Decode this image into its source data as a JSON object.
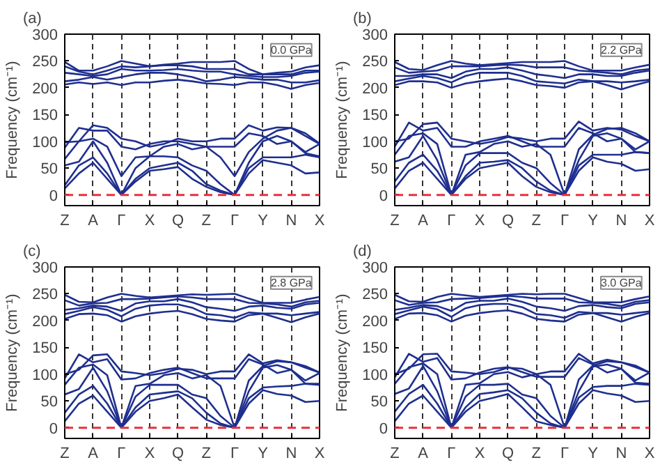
{
  "chart_data": [
    {
      "type": "line",
      "title": "(a)",
      "ylabel": "Frequency (cm⁻¹)",
      "annotations": [
        "0.0 GPa"
      ],
      "ylim": [
        -20,
        300
      ],
      "yticks": [
        0,
        50,
        100,
        150,
        200,
        250,
        300
      ],
      "categories": [
        "Z",
        null,
        "A",
        null,
        "Γ",
        null,
        "X",
        null,
        "Q",
        null,
        "Z",
        null,
        "Γ",
        null,
        "Y",
        null,
        "N",
        null,
        "X"
      ],
      "grid": "x",
      "ref_lines": [
        {
          "axis": "y",
          "value": 0,
          "color": "#e8303a",
          "line_style": "dashed"
        }
      ],
      "series": [
        {
          "color": "#1f2f8f",
          "values": [
            12,
            40,
            60,
            30,
            0,
            25,
            45,
            48,
            52,
            30,
            15,
            5,
            0,
            40,
            65,
            60,
            55,
            40,
            42
          ]
        },
        {
          "color": "#1f2f8f",
          "values": [
            18,
            55,
            70,
            40,
            0,
            30,
            50,
            55,
            60,
            45,
            20,
            8,
            0,
            50,
            70,
            70,
            70,
            75,
            70
          ]
        },
        {
          "color": "#1f2f8f",
          "values": [
            55,
            62,
            100,
            60,
            0,
            50,
            72,
            72,
            70,
            55,
            45,
            20,
            0,
            60,
            100,
            110,
            100,
            80,
            95
          ]
        },
        {
          "color": "#1f2f8f",
          "values": [
            67,
            100,
            105,
            90,
            35,
            70,
            72,
            90,
            95,
            85,
            90,
            70,
            35,
            80,
            105,
            120,
            125,
            110,
            95
          ]
        },
        {
          "color": "#1f2f8f",
          "values": [
            88,
            125,
            120,
            120,
            90,
            85,
            95,
            100,
            100,
            95,
            90,
            90,
            90,
            115,
            110,
            95,
            100,
            78,
            72
          ]
        },
        {
          "color": "#1f2f8f",
          "values": [
            98,
            100,
            130,
            125,
            105,
            100,
            90,
            95,
            105,
            100,
            100,
            105,
            105,
            130,
            120,
            126,
            125,
            115,
            96
          ]
        },
        {
          "color": "#1f2f8f",
          "values": [
            206,
            210,
            207,
            210,
            205,
            210,
            210,
            213,
            215,
            212,
            208,
            207,
            205,
            210,
            210,
            205,
            198,
            205,
            209
          ]
        },
        {
          "color": "#1f2f8f",
          "values": [
            212,
            215,
            220,
            215,
            220,
            225,
            228,
            228,
            225,
            220,
            212,
            215,
            220,
            218,
            215,
            215,
            210,
            210,
            214
          ]
        },
        {
          "color": "#1f2f8f",
          "values": [
            228,
            225,
            222,
            225,
            235,
            232,
            232,
            233,
            235,
            232,
            230,
            230,
            225,
            222,
            220,
            220,
            222,
            228,
            230
          ]
        },
        {
          "color": "#1f2f8f",
          "values": [
            240,
            230,
            225,
            232,
            240,
            238,
            240,
            242,
            242,
            240,
            235,
            235,
            235,
            225,
            225,
            225,
            225,
            232,
            232
          ]
        },
        {
          "color": "#1f2f8f",
          "values": [
            248,
            232,
            232,
            240,
            250,
            245,
            240,
            243,
            245,
            248,
            248,
            248,
            250,
            235,
            225,
            228,
            230,
            238,
            242
          ]
        }
      ]
    },
    {
      "type": "line",
      "title": "(b)",
      "ylabel": "Frequency (cm⁻¹)",
      "annotations": [
        "2.2 GPa"
      ],
      "ylim": [
        -20,
        300
      ],
      "yticks": [
        0,
        50,
        100,
        150,
        200,
        250,
        300
      ],
      "categories": [
        "Z",
        null,
        "A",
        null,
        "Γ",
        null,
        "X",
        null,
        "Q",
        null,
        "Z",
        null,
        "Γ",
        null,
        "Y",
        null,
        "N",
        null,
        "X"
      ],
      "grid": "x",
      "ref_lines": [
        {
          "axis": "y",
          "value": 0,
          "color": "#e8303a",
          "line_style": "dashed"
        }
      ],
      "series": [
        {
          "color": "#1f2f8f",
          "values": [
            12,
            45,
            60,
            30,
            0,
            30,
            50,
            55,
            60,
            35,
            15,
            5,
            0,
            45,
            70,
            62,
            58,
            45,
            48
          ]
        },
        {
          "color": "#1f2f8f",
          "values": [
            25,
            60,
            75,
            45,
            0,
            35,
            60,
            62,
            65,
            50,
            25,
            8,
            0,
            55,
            75,
            75,
            75,
            80,
            78
          ]
        },
        {
          "color": "#1f2f8f",
          "values": [
            62,
            70,
            110,
            65,
            0,
            55,
            78,
            78,
            78,
            60,
            50,
            22,
            0,
            65,
            110,
            115,
            105,
            85,
            100
          ]
        },
        {
          "color": "#1f2f8f",
          "values": [
            75,
            110,
            115,
            95,
            0,
            75,
            80,
            95,
            100,
            90,
            95,
            75,
            0,
            85,
            112,
            123,
            125,
            115,
            100
          ]
        },
        {
          "color": "#1f2f8f",
          "values": [
            90,
            135,
            120,
            125,
            90,
            90,
            100,
            105,
            110,
            100,
            90,
            90,
            90,
            125,
            115,
            100,
            105,
            80,
            78
          ]
        },
        {
          "color": "#1f2f8f",
          "values": [
            100,
            105,
            132,
            135,
            105,
            100,
            95,
            100,
            108,
            105,
            100,
            105,
            105,
            137,
            120,
            125,
            122,
            110,
            100
          ]
        },
        {
          "color": "#1f2f8f",
          "values": [
            205,
            212,
            212,
            210,
            200,
            208,
            212,
            215,
            217,
            212,
            205,
            203,
            200,
            210,
            212,
            205,
            197,
            205,
            212
          ]
        },
        {
          "color": "#1f2f8f",
          "values": [
            212,
            217,
            222,
            218,
            210,
            222,
            228,
            228,
            228,
            222,
            212,
            210,
            208,
            215,
            212,
            212,
            210,
            212,
            215
          ]
        },
        {
          "color": "#1f2f8f",
          "values": [
            222,
            222,
            225,
            225,
            218,
            230,
            235,
            235,
            238,
            232,
            225,
            222,
            218,
            225,
            225,
            222,
            222,
            228,
            232
          ]
        },
        {
          "color": "#1f2f8f",
          "values": [
            238,
            228,
            230,
            232,
            240,
            240,
            240,
            242,
            243,
            242,
            238,
            238,
            238,
            232,
            230,
            228,
            225,
            232,
            235
          ]
        },
        {
          "color": "#1f2f8f",
          "values": [
            248,
            235,
            233,
            242,
            250,
            245,
            242,
            244,
            246,
            248,
            248,
            248,
            250,
            240,
            232,
            232,
            232,
            238,
            243
          ]
        }
      ]
    },
    {
      "type": "line",
      "title": "(c)",
      "ylabel": "Frequency (cm⁻¹)",
      "annotations": [
        "2.8 GPa"
      ],
      "ylim": [
        -20,
        300
      ],
      "yticks": [
        0,
        50,
        100,
        150,
        200,
        250,
        300
      ],
      "categories": [
        "Z",
        null,
        "A",
        null,
        "Γ",
        null,
        "X",
        null,
        "Q",
        null,
        "Z",
        null,
        "Γ",
        null,
        "Y",
        null,
        "N",
        null,
        "X"
      ],
      "grid": "x",
      "ref_lines": [
        {
          "axis": "y",
          "value": 0,
          "color": "#e8303a",
          "line_style": "dashed"
        }
      ],
      "series": [
        {
          "color": "#1f2f8f",
          "values": [
            12,
            45,
            60,
            30,
            0,
            30,
            50,
            55,
            62,
            38,
            15,
            5,
            0,
            45,
            70,
            63,
            60,
            48,
            50
          ]
        },
        {
          "color": "#1f2f8f",
          "values": [
            28,
            62,
            78,
            45,
            0,
            38,
            62,
            65,
            68,
            55,
            28,
            8,
            0,
            55,
            75,
            77,
            78,
            82,
            80
          ]
        },
        {
          "color": "#1f2f8f",
          "values": [
            62,
            72,
            112,
            68,
            0,
            58,
            80,
            80,
            80,
            62,
            55,
            22,
            0,
            68,
            112,
            117,
            108,
            88,
            102
          ]
        },
        {
          "color": "#1f2f8f",
          "values": [
            80,
            112,
            118,
            98,
            0,
            78,
            82,
            98,
            102,
            92,
            98,
            78,
            0,
            88,
            115,
            124,
            122,
            115,
            103
          ]
        },
        {
          "color": "#1f2f8f",
          "values": [
            92,
            137,
            122,
            128,
            90,
            92,
            102,
            108,
            112,
            102,
            92,
            92,
            92,
            128,
            118,
            102,
            108,
            82,
            82
          ]
        },
        {
          "color": "#1f2f8f",
          "values": [
            100,
            108,
            135,
            137,
            105,
            102,
            98,
            102,
            110,
            108,
            100,
            105,
            105,
            137,
            120,
            126,
            122,
            112,
            103
          ]
        },
        {
          "color": "#1f2f8f",
          "values": [
            203,
            212,
            213,
            210,
            198,
            208,
            213,
            216,
            218,
            212,
            203,
            200,
            198,
            210,
            213,
            205,
            197,
            206,
            213
          ]
        },
        {
          "color": "#1f2f8f",
          "values": [
            212,
            218,
            225,
            220,
            208,
            222,
            228,
            230,
            230,
            224,
            212,
            210,
            205,
            215,
            213,
            213,
            210,
            213,
            216
          ]
        },
        {
          "color": "#1f2f8f",
          "values": [
            220,
            223,
            228,
            226,
            218,
            232,
            236,
            236,
            240,
            234,
            225,
            222,
            218,
            226,
            228,
            224,
            222,
            230,
            233
          ]
        },
        {
          "color": "#1f2f8f",
          "values": [
            238,
            228,
            232,
            233,
            240,
            240,
            241,
            243,
            245,
            243,
            240,
            240,
            240,
            233,
            232,
            230,
            226,
            234,
            237
          ]
        },
        {
          "color": "#1f2f8f",
          "values": [
            248,
            235,
            234,
            243,
            250,
            246,
            243,
            245,
            247,
            249,
            248,
            249,
            250,
            241,
            233,
            233,
            233,
            239,
            244
          ]
        }
      ]
    },
    {
      "type": "line",
      "title": "(d)",
      "ylabel": "Frequency (cm⁻¹)",
      "annotations": [
        "3.0 GPa"
      ],
      "ylim": [
        -20,
        300
      ],
      "yticks": [
        0,
        50,
        100,
        150,
        200,
        250,
        300
      ],
      "categories": [
        "Z",
        null,
        "A",
        null,
        "Γ",
        null,
        "X",
        null,
        "Q",
        null,
        "Z",
        null,
        "Γ",
        null,
        "Y",
        null,
        "N",
        null,
        "X"
      ],
      "grid": "x",
      "ref_lines": [
        {
          "axis": "y",
          "value": 0,
          "color": "#e8303a",
          "line_style": "dashed"
        }
      ],
      "series": [
        {
          "color": "#1f2f8f",
          "values": [
            12,
            45,
            60,
            30,
            0,
            30,
            50,
            56,
            63,
            38,
            12,
            5,
            0,
            45,
            70,
            64,
            60,
            48,
            50
          ]
        },
        {
          "color": "#1f2f8f",
          "values": [
            30,
            63,
            80,
            45,
            0,
            38,
            63,
            66,
            70,
            55,
            28,
            8,
            0,
            56,
            76,
            78,
            78,
            82,
            80
          ]
        },
        {
          "color": "#1f2f8f",
          "values": [
            63,
            73,
            115,
            68,
            0,
            58,
            80,
            80,
            82,
            62,
            55,
            22,
            0,
            68,
            114,
            118,
            110,
            88,
            103
          ]
        },
        {
          "color": "#1f2f8f",
          "values": [
            82,
            113,
            120,
            100,
            0,
            80,
            83,
            100,
            104,
            94,
            100,
            80,
            0,
            90,
            116,
            124,
            122,
            116,
            103
          ]
        },
        {
          "color": "#1f2f8f",
          "values": [
            94,
            138,
            123,
            130,
            90,
            92,
            103,
            110,
            113,
            104,
            95,
            95,
            95,
            130,
            118,
            103,
            110,
            84,
            82
          ]
        },
        {
          "color": "#1f2f8f",
          "values": [
            100,
            110,
            137,
            138,
            105,
            103,
            100,
            104,
            112,
            110,
            100,
            105,
            105,
            138,
            120,
            127,
            122,
            113,
            103
          ]
        },
        {
          "color": "#1f2f8f",
          "values": [
            203,
            213,
            214,
            210,
            198,
            209,
            214,
            217,
            219,
            213,
            203,
            200,
            198,
            211,
            214,
            206,
            198,
            207,
            214
          ]
        },
        {
          "color": "#1f2f8f",
          "values": [
            212,
            219,
            226,
            221,
            207,
            223,
            229,
            231,
            231,
            225,
            212,
            210,
            205,
            216,
            214,
            214,
            211,
            214,
            217
          ]
        },
        {
          "color": "#1f2f8f",
          "values": [
            220,
            224,
            229,
            227,
            218,
            233,
            237,
            237,
            241,
            235,
            226,
            223,
            218,
            227,
            229,
            225,
            223,
            231,
            234
          ]
        },
        {
          "color": "#1f2f8f",
          "values": [
            238,
            229,
            233,
            234,
            240,
            241,
            242,
            244,
            246,
            244,
            241,
            241,
            241,
            234,
            233,
            231,
            227,
            235,
            238
          ]
        },
        {
          "color": "#1f2f8f",
          "values": [
            248,
            236,
            235,
            244,
            250,
            247,
            244,
            246,
            248,
            250,
            249,
            250,
            250,
            242,
            234,
            234,
            234,
            240,
            245
          ]
        }
      ]
    }
  ]
}
